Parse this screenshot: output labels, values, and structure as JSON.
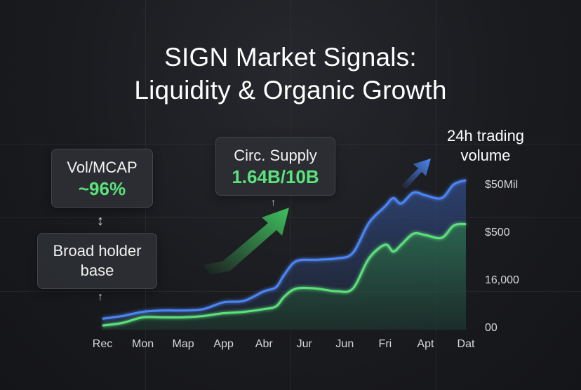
{
  "title_line1": "SIGN Market Signals:",
  "title_line2": "Liquidity & Organic Growth",
  "callouts": {
    "vol_mcap": {
      "label": "Vol/MCAP",
      "value": "~96%"
    },
    "circ_supply": {
      "label": "Circ. Supply",
      "value": "1.64B/10B"
    },
    "holder": {
      "line1": "Broad holder",
      "line2": "base"
    },
    "volume": {
      "line1": "24h trading",
      "line2": "volume"
    }
  },
  "glyphs": {
    "double_arrow": "↕",
    "up_arrow": "↑"
  },
  "colors": {
    "blue": "#4b86f5",
    "green": "#5ce07a",
    "arrow_green": "#3fbf5c"
  },
  "chart_data": {
    "type": "area",
    "title": "SIGN Market Signals: Liquidity & Organic Growth",
    "categories": [
      "Rec",
      "Mon",
      "Map",
      "App",
      "Abr",
      "Jur",
      "Jun",
      "Fri",
      "Apt",
      "Dat"
    ],
    "y_tick_labels": [
      "$50Mil",
      "$500",
      "16,000",
      "00"
    ],
    "y_scale": [
      0,
      100
    ],
    "series": [
      {
        "name": "24h trading volume",
        "color": "#4b86f5",
        "points": [
          [
            0,
            8
          ],
          [
            0.5,
            10
          ],
          [
            1,
            13
          ],
          [
            1.5,
            14
          ],
          [
            2,
            14
          ],
          [
            2.5,
            15
          ],
          [
            3,
            20
          ],
          [
            3.5,
            21
          ],
          [
            4,
            28
          ],
          [
            4.3,
            31
          ],
          [
            4.5,
            40
          ],
          [
            4.8,
            50
          ],
          [
            5.3,
            51
          ],
          [
            5.8,
            52
          ],
          [
            6.2,
            56
          ],
          [
            6.6,
            78
          ],
          [
            7.0,
            90
          ],
          [
            7.2,
            96
          ],
          [
            7.4,
            92
          ],
          [
            7.7,
            100
          ],
          [
            8.0,
            98
          ],
          [
            8.4,
            96
          ],
          [
            8.7,
            106
          ],
          [
            9.0,
            109
          ]
        ]
      },
      {
        "name": "Organic growth",
        "color": "#5ce07a",
        "points": [
          [
            0,
            3
          ],
          [
            0.5,
            5
          ],
          [
            1,
            9
          ],
          [
            1.5,
            9
          ],
          [
            2,
            9
          ],
          [
            2.5,
            10
          ],
          [
            3,
            12
          ],
          [
            3.5,
            13
          ],
          [
            4,
            15
          ],
          [
            4.3,
            17
          ],
          [
            4.5,
            24
          ],
          [
            4.8,
            30
          ],
          [
            5.3,
            30
          ],
          [
            5.8,
            28
          ],
          [
            6.2,
            30
          ],
          [
            6.6,
            52
          ],
          [
            7.0,
            62
          ],
          [
            7.2,
            57
          ],
          [
            7.4,
            62
          ],
          [
            7.7,
            70
          ],
          [
            8.0,
            69
          ],
          [
            8.4,
            67
          ],
          [
            8.7,
            76
          ],
          [
            9.0,
            77
          ]
        ]
      }
    ]
  }
}
